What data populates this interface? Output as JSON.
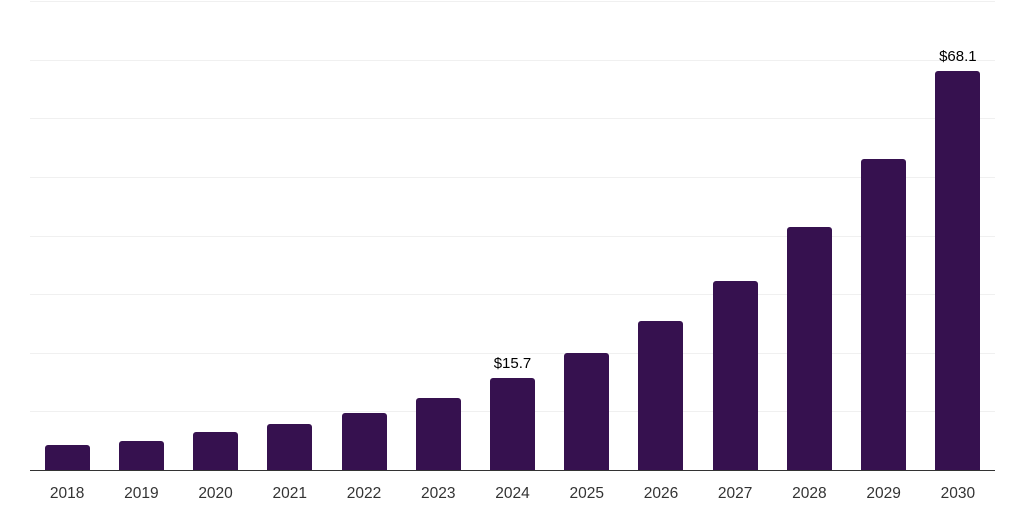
{
  "chart_data": {
    "type": "bar",
    "title": "",
    "xlabel": "",
    "ylabel": "",
    "categories": [
      "2018",
      "2019",
      "2020",
      "2021",
      "2022",
      "2023",
      "2024",
      "2025",
      "2026",
      "2027",
      "2028",
      "2029",
      "2030"
    ],
    "values": [
      4.2,
      4.9,
      6.4,
      7.8,
      9.7,
      12.3,
      15.7,
      20.0,
      25.4,
      32.3,
      41.4,
      53.0,
      68.1
    ],
    "value_labels": [
      "",
      "",
      "",
      "",
      "",
      "",
      "$15.7",
      "",
      "",
      "",
      "",
      "",
      "$68.1"
    ],
    "ylim": [
      0,
      80
    ],
    "grid": true,
    "grid_step": 10,
    "legend": "none",
    "colors": {
      "bar": "#36114F",
      "axis": "#333333",
      "gridline": "#F0F0F0",
      "tick_label": "#333333",
      "value_label": "#000000",
      "background": "#FFFFFF"
    }
  }
}
